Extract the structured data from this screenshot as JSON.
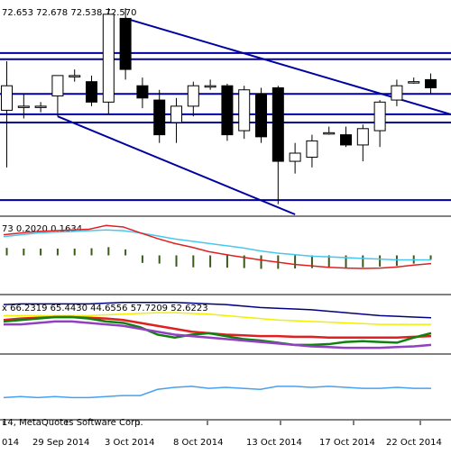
{
  "chart_data": [
    {
      "type": "candlestick",
      "header_values": [
        "72.653",
        "72.678",
        "72.538",
        "72.570"
      ],
      "candles": [
        {
          "o": 72.3,
          "h": 72.42,
          "l": 71.9,
          "c": 72.18,
          "dir": "up"
        },
        {
          "o": 72.2,
          "h": 72.26,
          "l": 72.14,
          "c": 72.2,
          "dir": "doji"
        },
        {
          "o": 72.2,
          "h": 72.22,
          "l": 72.17,
          "c": 72.2,
          "dir": "doji"
        },
        {
          "o": 72.25,
          "h": 72.35,
          "l": 72.15,
          "c": 72.35,
          "dir": "up"
        },
        {
          "o": 72.35,
          "h": 72.38,
          "l": 72.32,
          "c": 72.35,
          "dir": "doji"
        },
        {
          "o": 72.32,
          "h": 72.35,
          "l": 72.2,
          "c": 72.22,
          "dir": "down"
        },
        {
          "o": 72.22,
          "h": 72.68,
          "l": 72.16,
          "c": 72.65,
          "dir": "up"
        },
        {
          "o": 72.63,
          "h": 72.68,
          "l": 72.33,
          "c": 72.38,
          "dir": "down"
        },
        {
          "o": 72.3,
          "h": 72.34,
          "l": 72.19,
          "c": 72.24,
          "dir": "down"
        },
        {
          "o": 72.23,
          "h": 72.28,
          "l": 72.02,
          "c": 72.06,
          "dir": "down"
        },
        {
          "o": 72.12,
          "h": 72.24,
          "l": 72.02,
          "c": 72.2,
          "dir": "up"
        },
        {
          "o": 72.2,
          "h": 72.32,
          "l": 72.15,
          "c": 72.3,
          "dir": "up"
        },
        {
          "o": 72.3,
          "h": 72.33,
          "l": 72.28,
          "c": 72.3,
          "dir": "doji"
        },
        {
          "o": 72.3,
          "h": 72.31,
          "l": 72.03,
          "c": 72.06,
          "dir": "down"
        },
        {
          "o": 72.08,
          "h": 72.3,
          "l": 72.04,
          "c": 72.28,
          "dir": "up"
        },
        {
          "o": 72.26,
          "h": 72.29,
          "l": 72.02,
          "c": 72.05,
          "dir": "down"
        },
        {
          "o": 72.29,
          "h": 72.3,
          "l": 71.72,
          "c": 71.93,
          "dir": "down"
        },
        {
          "o": 71.93,
          "h": 72.02,
          "l": 71.87,
          "c": 71.97,
          "dir": "up"
        },
        {
          "o": 71.95,
          "h": 72.06,
          "l": 71.9,
          "c": 72.03,
          "dir": "up"
        },
        {
          "o": 72.07,
          "h": 72.1,
          "l": 72.06,
          "c": 72.07,
          "dir": "doji"
        },
        {
          "o": 72.06,
          "h": 72.1,
          "l": 72.0,
          "c": 72.01,
          "dir": "down"
        },
        {
          "o": 72.01,
          "h": 72.11,
          "l": 71.93,
          "c": 72.09,
          "dir": "up"
        },
        {
          "o": 72.08,
          "h": 72.23,
          "l": 72.0,
          "c": 72.22,
          "dir": "up"
        },
        {
          "o": 72.23,
          "h": 72.33,
          "l": 72.2,
          "c": 72.3,
          "dir": "up"
        },
        {
          "o": 72.32,
          "h": 72.34,
          "l": 72.31,
          "c": 72.32,
          "dir": "doji"
        },
        {
          "o": 72.33,
          "h": 72.36,
          "l": 72.26,
          "c": 72.29,
          "dir": "down"
        }
      ],
      "horizontal_lines": [
        72.46,
        72.43,
        72.26,
        72.16,
        72.12,
        71.74
      ],
      "trend_lines": [
        {
          "from": {
            "bar": 7,
            "value": 72.63
          },
          "to": {
            "bar": 27,
            "value": 72.14
          }
        },
        {
          "from": {
            "bar": 3,
            "value": 72.15
          },
          "to": {
            "bar": 17,
            "value": 71.67
          }
        }
      ],
      "ylim": [
        71.67,
        72.72
      ],
      "colors": {
        "up": "#ffffff",
        "down": "#000000",
        "lines": "#0000a0"
      }
    },
    {
      "type": "oscillator",
      "header_values": [
        "0.2020",
        "0.1634"
      ],
      "header_prefix": "73",
      "bars": [
        0.2,
        0.18,
        0.18,
        0.18,
        0.18,
        0.19,
        0.22,
        0.16,
        -0.2,
        -0.22,
        -0.3,
        -0.32,
        -0.32,
        -0.33,
        -0.34,
        -0.36,
        -0.36,
        -0.35,
        -0.34,
        -0.33,
        -0.33,
        -0.32,
        -0.3,
        -0.28,
        -0.22,
        -0.12
      ],
      "signal": [
        0.5,
        0.55,
        0.6,
        0.62,
        0.64,
        0.66,
        0.68,
        0.66,
        0.6,
        0.52,
        0.44,
        0.38,
        0.32,
        0.26,
        0.2,
        0.12,
        0.06,
        0.02,
        -0.02,
        -0.04,
        -0.06,
        -0.08,
        -0.1,
        -0.12,
        -0.12,
        -0.12
      ],
      "main": [
        0.55,
        0.6,
        0.64,
        0.66,
        0.68,
        0.7,
        0.8,
        0.76,
        0.6,
        0.45,
        0.32,
        0.22,
        0.1,
        0.02,
        -0.05,
        -0.12,
        -0.18,
        -0.24,
        -0.28,
        -0.32,
        -0.34,
        -0.35,
        -0.34,
        -0.31,
        -0.26,
        -0.22
      ],
      "ylim": [
        -1.0,
        1.0
      ],
      "colors": {
        "signal": "#48c8f0",
        "main": "#e02020",
        "bars": "#3a5a1a"
      }
    },
    {
      "type": "multi_line",
      "header_prefix": "x",
      "header_values": [
        "66.2319",
        "65.4430",
        "44.6556",
        "57.7209",
        "52.6223"
      ],
      "series_lines": [
        {
          "values": [
            85,
            86,
            86,
            86,
            86,
            86,
            87,
            88,
            88,
            88,
            88,
            87,
            86,
            85,
            83,
            81,
            80,
            79,
            78,
            76,
            74,
            72,
            70,
            69,
            68,
            67
          ],
          "color": "#000080"
        },
        {
          "values": [
            70,
            70,
            70,
            70,
            70,
            70,
            71,
            72,
            73,
            74,
            74,
            73,
            72,
            70,
            68,
            66,
            64,
            63,
            62,
            61,
            60,
            59,
            58,
            58,
            58,
            58
          ],
          "color": "#f0f000"
        },
        {
          "values": [
            64,
            66,
            67,
            68,
            68,
            67,
            66,
            64,
            60,
            56,
            52,
            48,
            46,
            44,
            43,
            42,
            42,
            41,
            41,
            40,
            40,
            40,
            40,
            40,
            41,
            42
          ],
          "color": "#e02020"
        },
        {
          "values": [
            62,
            64,
            66,
            68,
            68,
            66,
            62,
            60,
            54,
            44,
            40,
            44,
            46,
            42,
            38,
            36,
            33,
            30,
            30,
            31,
            34,
            35,
            34,
            33,
            40,
            46
          ],
          "color": "#108010"
        },
        {
          "values": [
            58,
            58,
            60,
            62,
            62,
            60,
            58,
            56,
            52,
            48,
            44,
            42,
            40,
            38,
            36,
            34,
            32,
            30,
            28,
            27,
            26,
            26,
            26,
            27,
            28,
            30
          ],
          "color": "#9040c0"
        }
      ],
      "ylim": [
        20,
        95
      ]
    },
    {
      "type": "line",
      "series_lines": [
        {
          "values": [
            20,
            21,
            20,
            21,
            20,
            20,
            21,
            22,
            22,
            28,
            30,
            31,
            29,
            30,
            29,
            28,
            31,
            31,
            30,
            31,
            30,
            29,
            29,
            30,
            29,
            29
          ],
          "color": "#48a0f0"
        }
      ],
      "ylim": [
        0,
        60
      ]
    }
  ],
  "x_labels": [
    "014",
    "29 Sep 2014",
    "3 Oct 2014",
    "8 Oct 2014",
    "13 Oct 2014",
    "17 Oct 2014",
    "22 Oct 2014"
  ],
  "copyright": "14, MetaQuotes Software Corp."
}
